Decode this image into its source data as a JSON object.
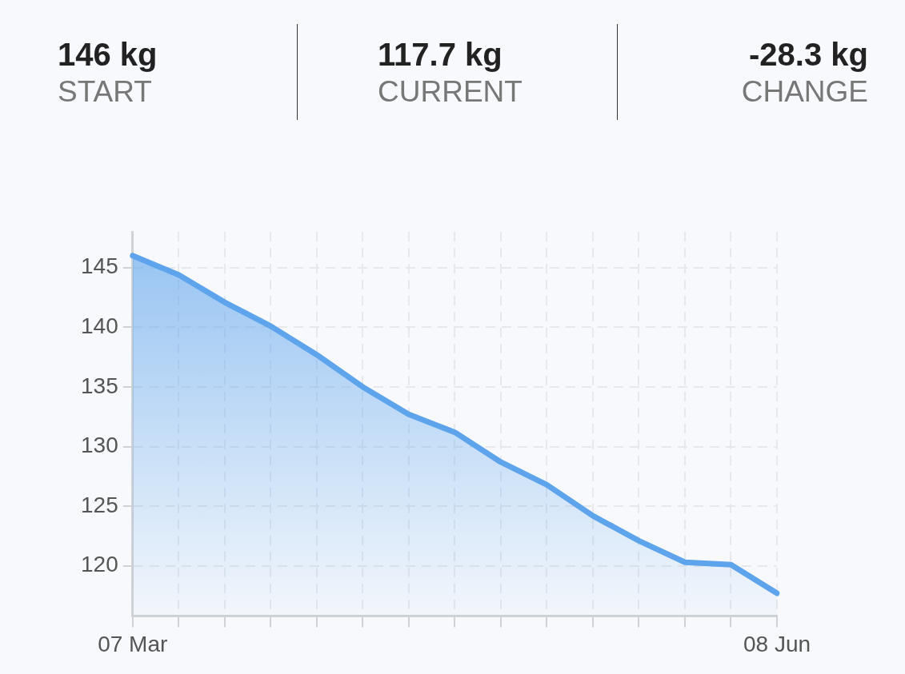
{
  "chart_data": [
    {
      "type": "other",
      "annotations": [
        "146 kg",
        "START",
        "117.7 kg",
        "CURRENT",
        "-28.3 kg",
        "CHANGE"
      ]
    },
    {
      "type": "area",
      "categories": [
        "07 Mar",
        null,
        null,
        null,
        null,
        null,
        null,
        null,
        null,
        null,
        null,
        null,
        null,
        null,
        "08 Jun"
      ],
      "series": [
        {
          "color": "#5ea4ec",
          "values": [
            146,
            144.4,
            142.1,
            140.1,
            137.7,
            135,
            132.7,
            131.2,
            128.7,
            126.8,
            124.2,
            122.1,
            120.3,
            120.1,
            117.7
          ]
        }
      ],
      "ylim": [
        115.8,
        148
      ],
      "yticks": [
        120,
        125,
        130,
        135,
        140,
        145
      ],
      "grid": true,
      "legend": false,
      "marker": "none",
      "line_style": "solid"
    }
  ]
}
